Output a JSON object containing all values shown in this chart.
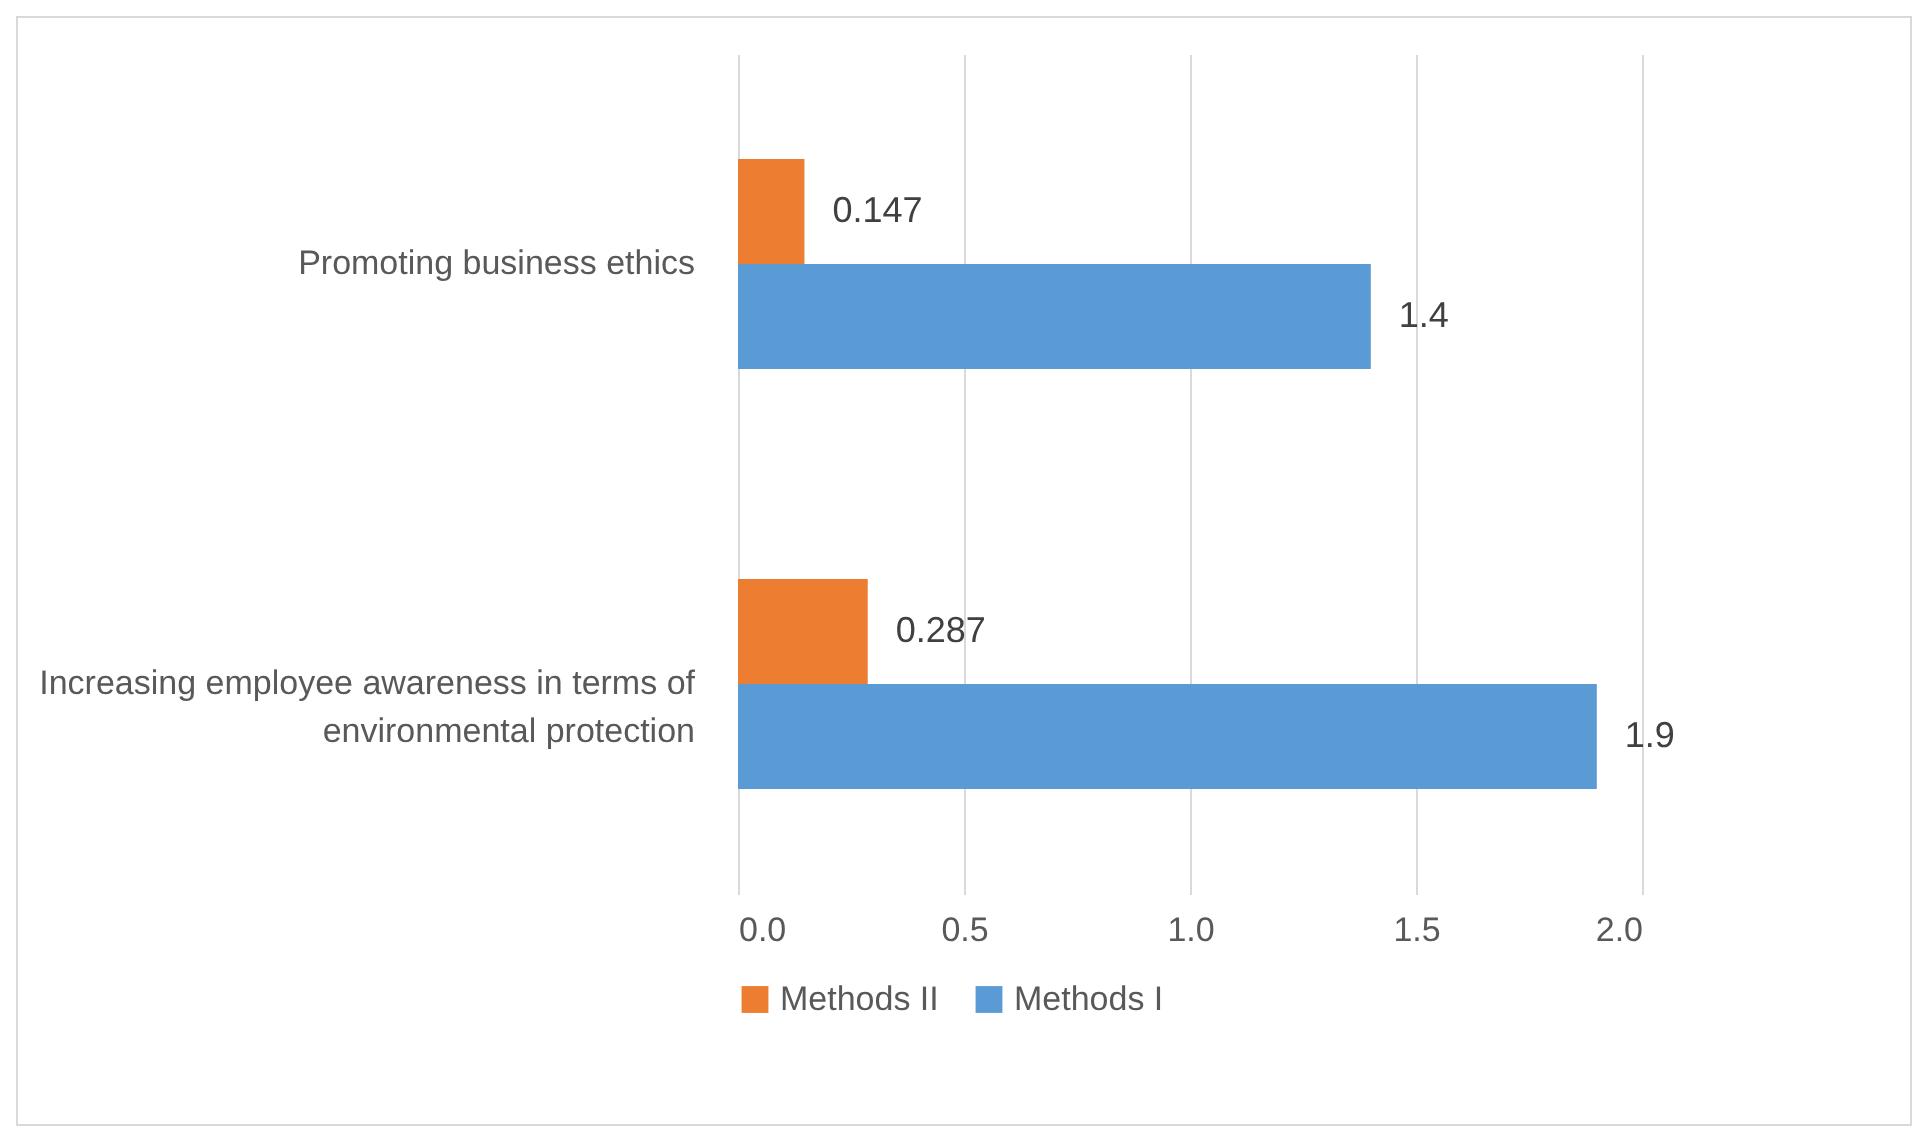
{
  "chart_data": {
    "type": "bar",
    "orientation": "horizontal",
    "categories": [
      "Promoting business ethics",
      "Increasing employee awareness in terms of environmental protection"
    ],
    "series": [
      {
        "name": "Methods II",
        "color": "#ed7d31",
        "values": [
          0.147,
          0.287
        ]
      },
      {
        "name": "Methods I",
        "color": "#5b9bd5",
        "values": [
          1.4,
          1.9
        ]
      }
    ],
    "xlim": [
      0,
      2.0
    ],
    "xticks": [
      {
        "value": 0,
        "label": "0.0"
      },
      {
        "value": 0.5,
        "label": "0.5"
      },
      {
        "value": 1,
        "label": "1.0"
      },
      {
        "value": 1.5,
        "label": "1.5"
      },
      {
        "value": 2,
        "label": "2.0"
      }
    ],
    "grid": "x",
    "legend": "bottom",
    "data_labels": true
  }
}
